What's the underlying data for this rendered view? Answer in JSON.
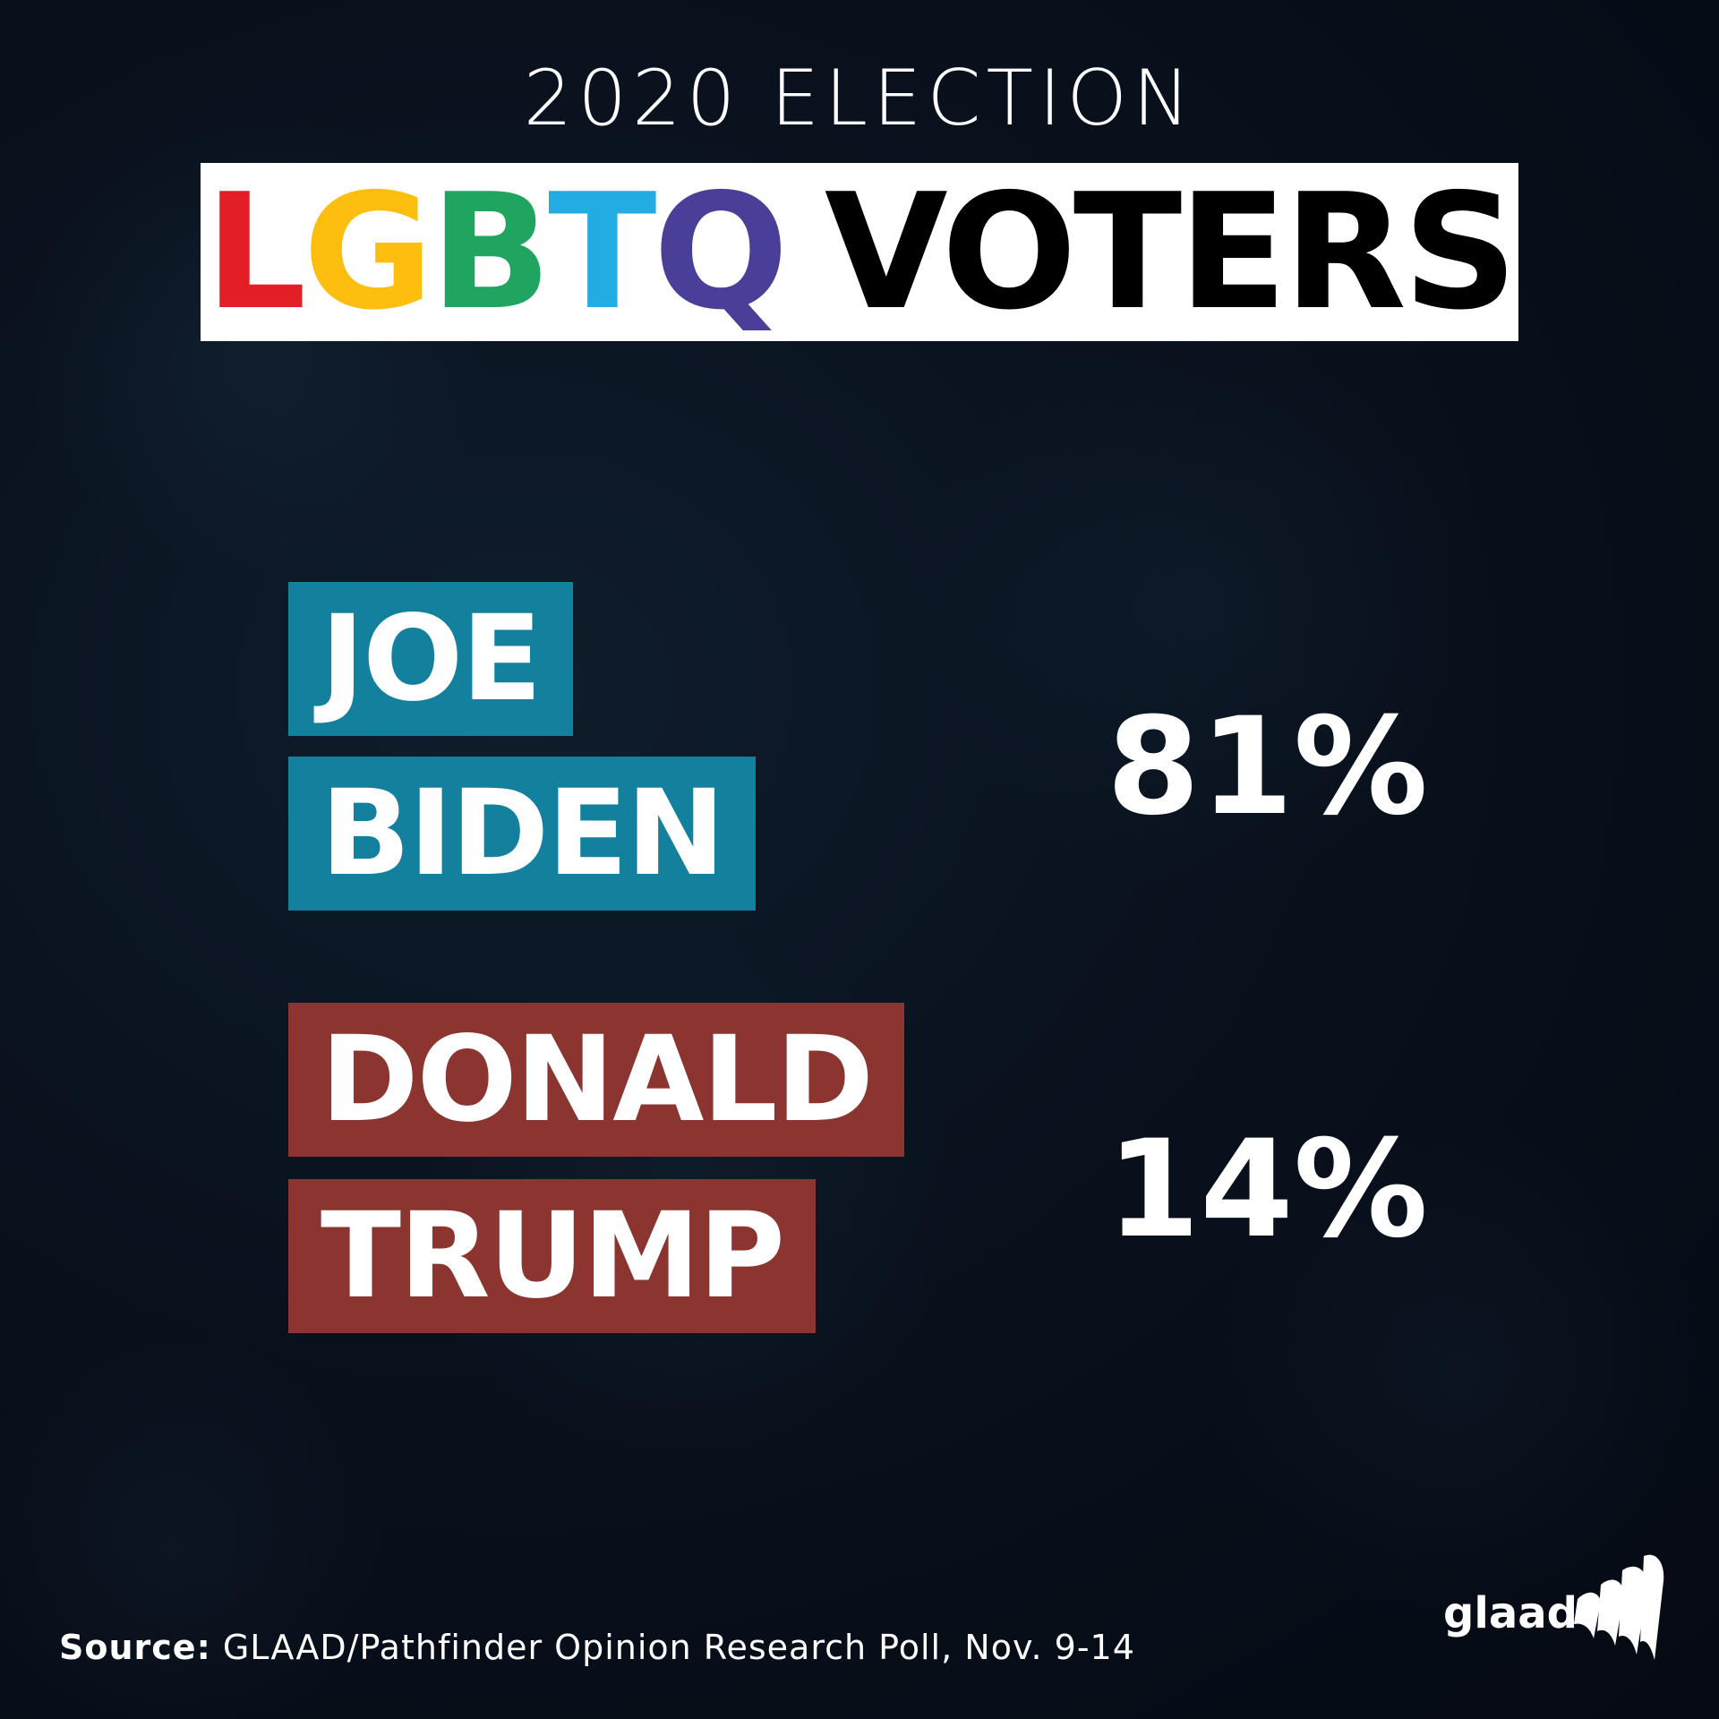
{
  "subtitle": "2020 ELECTION",
  "title": {
    "letters": [
      {
        "char": "L",
        "color": "#e31e26"
      },
      {
        "char": "G",
        "color": "#fdbe10"
      },
      {
        "char": "B",
        "color": "#1fa560"
      },
      {
        "char": "T",
        "color": "#23ace2"
      },
      {
        "char": "Q",
        "color": "#4a3f98"
      }
    ],
    "rest": "VOTERS",
    "rest_color": "#000000"
  },
  "candidates": [
    {
      "first": "JOE",
      "last": "BIDEN",
      "percent": "81%",
      "color": "#13809e"
    },
    {
      "first": "DONALD",
      "last": "TRUMP",
      "percent": "14%",
      "color": "#8c3430"
    }
  ],
  "source": {
    "label": "Source:",
    "text": "GLAAD/Pathfinder Opinion Research Poll, Nov. 9-14"
  },
  "logo": {
    "wordmark": "glaad"
  }
}
